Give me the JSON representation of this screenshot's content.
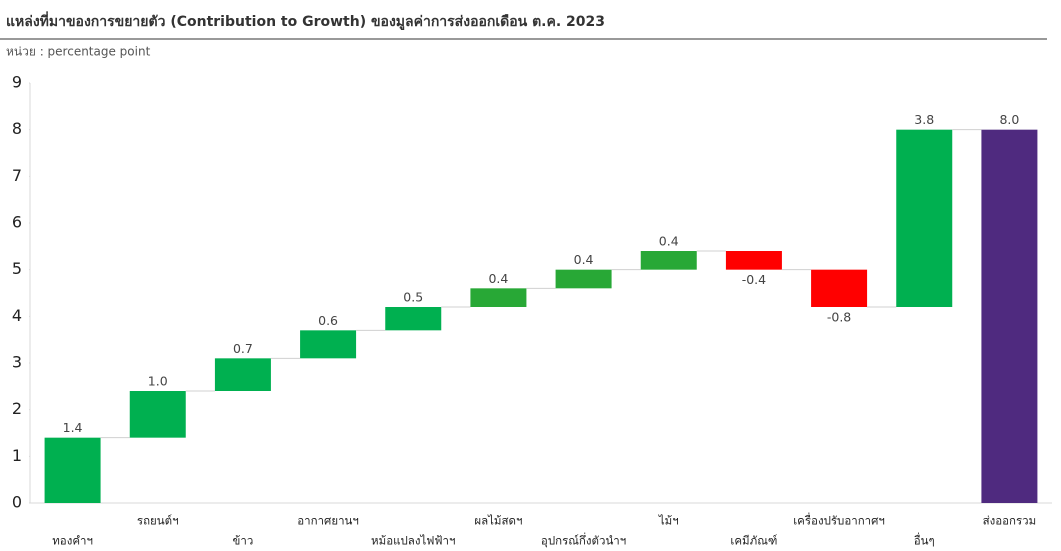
{
  "chart_data": {
    "type": "waterfall",
    "title": "แหล่งที่มาของการขยายตัว (Contribution to Growth) ของมูลค่าการส่งออกเดือน ต.ค. 2023",
    "subtitle": "หน่วย : percentage point",
    "categories": [
      "ทองคำฯ",
      "รถยนต์ฯ",
      "ข้าว",
      "อากาศยานฯ",
      "หม้อแปลงไฟฟ้าฯ",
      "ผลไม้สดฯ",
      "อุปกรณ์กึ่งตัวนำฯ",
      "ไม้ฯ",
      "เคมีภัณฑ์",
      "เครื่องปรับอากาศฯ",
      "อื่นๆ",
      "ส่งออกรวม"
    ],
    "values": [
      1.4,
      1.0,
      0.7,
      0.6,
      0.5,
      0.4,
      0.4,
      0.4,
      -0.4,
      -0.8,
      3.8,
      8.0
    ],
    "value_labels": [
      "1.4",
      "1.0",
      "0.7",
      "0.6",
      "0.5",
      "0.4",
      "0.4",
      "0.4",
      "-0.4",
      "-0.8",
      "3.8",
      "8.0"
    ],
    "colors": [
      "#00b050",
      "#00b050",
      "#00b050",
      "#00b050",
      "#00b050",
      "#28a836",
      "#28a836",
      "#28a836",
      "#ff0000",
      "#ff0000",
      "#00b050",
      "#4f2a7f"
    ],
    "ylim": [
      0,
      9
    ],
    "yticks": [
      0,
      1,
      2,
      3,
      4,
      5,
      6,
      7,
      8,
      9
    ]
  }
}
